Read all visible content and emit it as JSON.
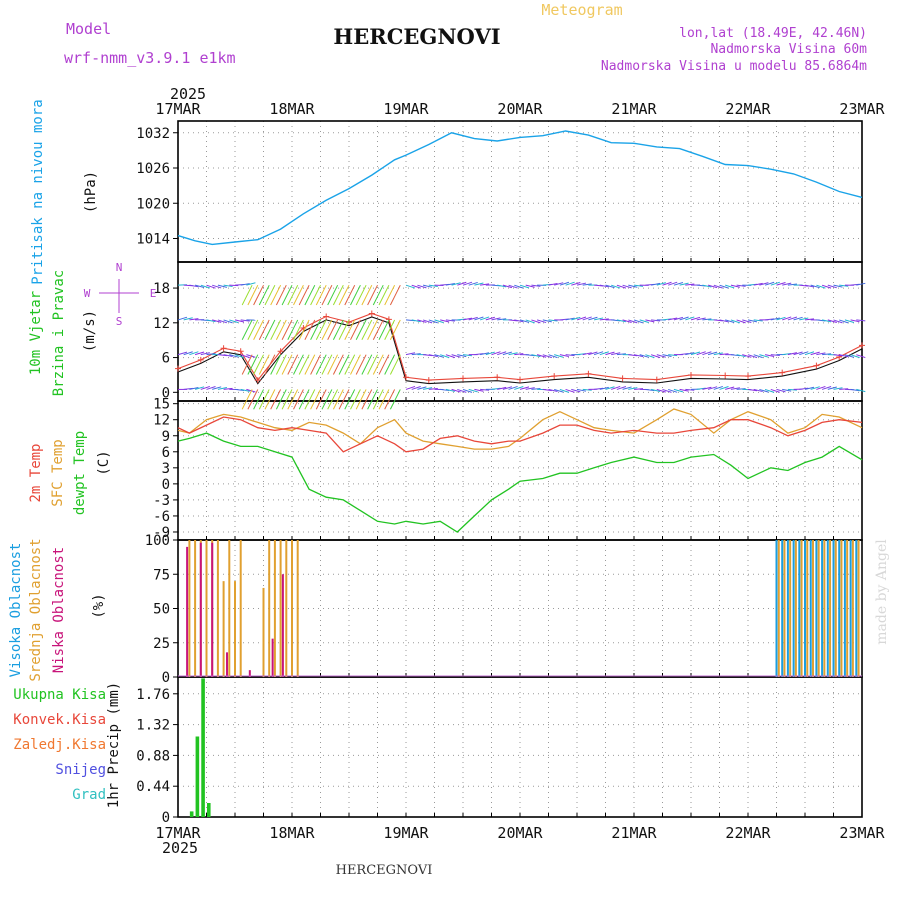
{
  "header": {
    "model_label": "Model",
    "model_name": "wrf-nmm_v3.9.1 e1km",
    "title": "HERCEGNOVI",
    "subtitle": "Meteogram",
    "coords": "lon,lat (18.49E, 42.46N)",
    "elevation": "Nadmorska Visina 60m",
    "model_elevation": "Nadmorska Visina u modelu 85.6864m",
    "footer_title": "HERCEGNOVI",
    "credit": "made by Angel"
  },
  "time_axis": {
    "year": "2025",
    "labels": [
      "17MAR",
      "18MAR",
      "19MAR",
      "20MAR",
      "21MAR",
      "22MAR",
      "23MAR"
    ]
  },
  "colors": {
    "pressure": "#1aa3e8",
    "temp2m": "#e8473a",
    "sfc_temp": "#e0a030",
    "dewpoint": "#22c322",
    "high_cloud": "#1a9ee0",
    "mid_cloud": "#e0a030",
    "low_cloud": "#c8147a",
    "total_precip": "#22c322",
    "conv_precip": "#e8473a",
    "frozen_precip": "#f07830",
    "snow": "#5050e0",
    "hail": "#30c0c0",
    "purple_text": "#b040d0"
  },
  "chart_data": [
    {
      "type": "line",
      "panel": "pressure",
      "ylabel_main": "Pritisak na nivou mora",
      "unit": "(hPa)",
      "yticks": [
        "1014",
        "1020",
        "1026",
        "1032"
      ],
      "ylim": [
        1010,
        1034
      ],
      "x_days": [
        0,
        0.15,
        0.3,
        0.5,
        0.7,
        0.9,
        1.1,
        1.3,
        1.5,
        1.7,
        1.9,
        2.0,
        2.2,
        2.4,
        2.6,
        2.8,
        3.0,
        3.2,
        3.4,
        3.6,
        3.8,
        4.0,
        4.2,
        4.4,
        4.6,
        4.8,
        5.0,
        5.2,
        5.4,
        5.6,
        5.8,
        6.0
      ],
      "values": [
        1014.5,
        1013.6,
        1013.0,
        1013.4,
        1013.8,
        1015.6,
        1018.2,
        1020.5,
        1022.5,
        1024.8,
        1027.4,
        1028.2,
        1030.0,
        1032.0,
        1031.0,
        1030.6,
        1031.2,
        1031.5,
        1032.3,
        1031.6,
        1030.3,
        1030.2,
        1029.6,
        1029.3,
        1028.0,
        1026.6,
        1026.4,
        1025.8,
        1025.0,
        1023.6,
        1022.0,
        1021.0
      ],
      "series": [
        {
          "name": "Pritisak na nivou mora"
        }
      ]
    },
    {
      "type": "line",
      "panel": "wind",
      "ylabel_main": "10m Vjetar",
      "ylabel_sub": "Brzina i Pravac",
      "unit": "(m/s)",
      "compass": [
        "N",
        "E",
        "S",
        "W"
      ],
      "yticks": [
        "0",
        "6",
        "12",
        "18"
      ],
      "ylim": [
        -1.5,
        22.5
      ],
      "x_days": [
        0,
        0.2,
        0.4,
        0.55,
        0.7,
        0.9,
        1.1,
        1.3,
        1.5,
        1.7,
        1.85,
        2.0,
        2.2,
        2.5,
        2.8,
        3.0,
        3.3,
        3.6,
        3.9,
        4.2,
        4.5,
        4.8,
        5.0,
        5.3,
        5.6,
        5.8,
        6.0
      ],
      "values": [
        3.5,
        5.0,
        7.0,
        6.5,
        1.5,
        6.5,
        10.5,
        12.5,
        11.5,
        13.0,
        12.0,
        2.0,
        1.5,
        1.8,
        2.0,
        1.6,
        2.2,
        2.6,
        1.8,
        1.6,
        2.4,
        2.3,
        2.2,
        2.8,
        4.0,
        5.5,
        7.5
      ]
    },
    {
      "type": "line",
      "panel": "temperature",
      "ylabel_main": "2m Temp",
      "ylabel_sub": "SFC Temp",
      "ylabel_third": "dewpt Temp",
      "unit": "(C)",
      "yticks": [
        "-9",
        "-6",
        "-3",
        "0",
        "3",
        "6",
        "9",
        "12",
        "15"
      ],
      "ylim": [
        -10.5,
        15.5
      ],
      "x_days": [
        0,
        0.1,
        0.25,
        0.4,
        0.55,
        0.7,
        0.85,
        1.0,
        1.15,
        1.3,
        1.45,
        1.6,
        1.75,
        1.9,
        2.0,
        2.15,
        2.3,
        2.45,
        2.6,
        2.75,
        2.9,
        3.0,
        3.2,
        3.35,
        3.5,
        3.65,
        3.8,
        4.0,
        4.2,
        4.35,
        4.5,
        4.7,
        4.85,
        5.0,
        5.2,
        5.35,
        5.5,
        5.65,
        5.8,
        6.0
      ],
      "series": [
        {
          "name": "2m Temp",
          "values": [
            10.5,
            9.5,
            11.0,
            12.5,
            12.0,
            10.5,
            10.0,
            10.5,
            10.0,
            9.5,
            6.0,
            7.5,
            9.0,
            7.5,
            6.0,
            6.5,
            8.5,
            9.0,
            8.0,
            7.5,
            8.0,
            8.0,
            9.5,
            11.0,
            11.0,
            10.0,
            9.5,
            10.0,
            9.5,
            9.5,
            10.0,
            10.5,
            12.0,
            12.0,
            10.5,
            9.0,
            10.0,
            11.5,
            12.0,
            11.5
          ]
        },
        {
          "name": "SFC Temp",
          "values": [
            10.0,
            9.5,
            12.0,
            13.0,
            12.5,
            11.5,
            10.5,
            10.0,
            11.5,
            11.0,
            9.5,
            7.5,
            10.5,
            12.0,
            9.5,
            8.0,
            7.5,
            7.0,
            6.5,
            6.5,
            7.0,
            8.5,
            12.0,
            13.5,
            12.0,
            10.5,
            10.0,
            9.5,
            12.0,
            14.0,
            13.0,
            9.5,
            12.0,
            13.5,
            12.0,
            9.5,
            10.5,
            13.0,
            12.5,
            10.5
          ]
        },
        {
          "name": "dewpt Temp",
          "values": [
            8.0,
            8.5,
            9.5,
            8.0,
            7.0,
            7.0,
            6.0,
            5.0,
            -1.0,
            -2.5,
            -3.0,
            -5.0,
            -7.0,
            -7.5,
            -7.0,
            -7.5,
            -7.0,
            -9.0,
            -6.0,
            -3.0,
            -1.0,
            0.5,
            1.0,
            2.0,
            2.0,
            3.0,
            4.0,
            5.0,
            4.0,
            4.0,
            5.0,
            5.5,
            3.5,
            1.0,
            3.0,
            2.5,
            4.0,
            5.0,
            7.0,
            4.5
          ]
        }
      ]
    },
    {
      "type": "bar",
      "panel": "clouds",
      "ylabel_main": "Visoka Oblacnost",
      "ylabel_sub": "Srednja Oblacnost",
      "ylabel_third": "Niska Oblacnost",
      "unit": "(%)",
      "yticks": [
        "0",
        "25",
        "50",
        "75",
        "100"
      ],
      "ylim": [
        0,
        100
      ],
      "series": [
        {
          "name": "Srednja Oblacnost",
          "x_days": [
            0.1,
            0.15,
            0.2,
            0.25,
            0.3,
            0.35,
            0.4,
            0.45,
            0.5,
            0.55,
            0.75,
            0.8,
            0.85,
            0.9,
            0.95,
            1.0,
            1.05,
            5.27,
            5.32,
            5.37,
            5.42,
            5.47,
            5.52,
            5.57,
            5.62,
            5.67,
            5.72,
            5.77,
            5.82,
            5.87,
            5.92,
            5.97
          ],
          "values": [
            100,
            100,
            100,
            100,
            100,
            100,
            70,
            100,
            70,
            100,
            65,
            100,
            100,
            100,
            100,
            100,
            100,
            100,
            100,
            100,
            100,
            100,
            100,
            100,
            100,
            100,
            100,
            100,
            100,
            100,
            100,
            100
          ]
        },
        {
          "name": "Niska Oblacnost",
          "x_days": [
            0.08,
            0.2,
            0.3,
            0.43,
            0.63,
            0.83,
            0.92
          ],
          "values": [
            95,
            98,
            98,
            18,
            5,
            28,
            75
          ]
        },
        {
          "name": "Visoka Oblacnost",
          "x_days": [
            5.25,
            5.3,
            5.35,
            5.4,
            5.45,
            5.5,
            5.55,
            5.6,
            5.65,
            5.7,
            5.75,
            5.8,
            5.85,
            5.9,
            5.95
          ],
          "values": [
            100,
            100,
            100,
            100,
            100,
            100,
            100,
            100,
            100,
            100,
            100,
            100,
            100,
            100,
            100
          ]
        }
      ]
    },
    {
      "type": "bar",
      "panel": "precip",
      "legend": [
        "Ukupna Kisa",
        "Konvek.Kisa",
        "Zaledj.Kisa",
        "Snijeg",
        "Grad"
      ],
      "ylabel_main": "1hr Precip",
      "unit": "(mm)",
      "yticks": [
        "0",
        "0.44",
        "0.88",
        "1.32",
        "1.76"
      ],
      "ylim": [
        0,
        2.0
      ],
      "series": [
        {
          "name": "Ukupna Kisa",
          "x_days": [
            0.12,
            0.17,
            0.22,
            0.27
          ],
          "values": [
            0.08,
            1.15,
            1.98,
            0.2
          ]
        }
      ]
    }
  ]
}
